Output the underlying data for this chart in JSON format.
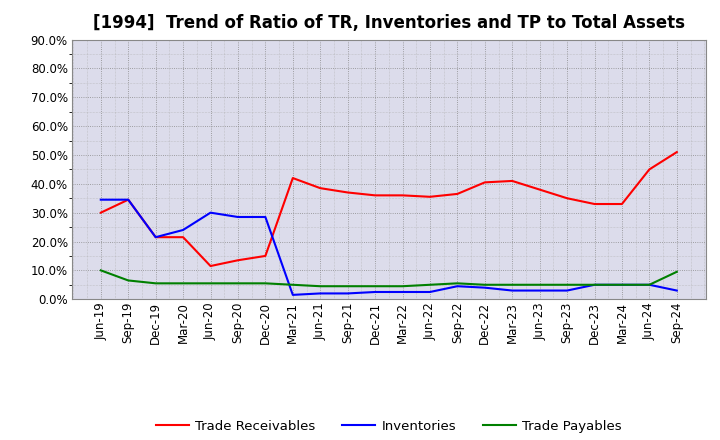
{
  "title": "[1994]  Trend of Ratio of TR, Inventories and TP to Total Assets",
  "x_labels": [
    "Jun-19",
    "Sep-19",
    "Dec-19",
    "Mar-20",
    "Jun-20",
    "Sep-20",
    "Dec-20",
    "Mar-21",
    "Jun-21",
    "Sep-21",
    "Dec-21",
    "Mar-22",
    "Jun-22",
    "Sep-22",
    "Dec-22",
    "Mar-23",
    "Jun-23",
    "Sep-23",
    "Dec-23",
    "Mar-24",
    "Jun-24",
    "Sep-24"
  ],
  "trade_receivables": [
    30.0,
    34.5,
    21.5,
    21.5,
    11.5,
    13.5,
    15.0,
    42.0,
    38.5,
    37.0,
    36.0,
    36.0,
    35.5,
    36.5,
    40.5,
    41.0,
    38.0,
    35.0,
    33.0,
    33.0,
    45.0,
    51.0
  ],
  "inventories": [
    34.5,
    34.5,
    21.5,
    24.0,
    30.0,
    28.5,
    28.5,
    1.5,
    2.0,
    2.0,
    2.5,
    2.5,
    2.5,
    4.5,
    4.0,
    3.0,
    3.0,
    3.0,
    5.0,
    5.0,
    5.0,
    3.0
  ],
  "trade_payables": [
    10.0,
    6.5,
    5.5,
    5.5,
    5.5,
    5.5,
    5.5,
    5.0,
    4.5,
    4.5,
    4.5,
    4.5,
    5.0,
    5.5,
    5.0,
    5.0,
    5.0,
    5.0,
    5.0,
    5.0,
    5.0,
    9.5
  ],
  "color_tr": "#FF0000",
  "color_inv": "#0000FF",
  "color_tp": "#008000",
  "ylim": [
    0.0,
    90.0
  ],
  "yticks": [
    0.0,
    10.0,
    20.0,
    30.0,
    40.0,
    50.0,
    60.0,
    70.0,
    80.0,
    90.0
  ],
  "legend_labels": [
    "Trade Receivables",
    "Inventories",
    "Trade Payables"
  ],
  "background_color": "#FFFFFF",
  "plot_bg_color": "#DCDCEB",
  "grid_color": "#AAAAAA",
  "title_fontsize": 12,
  "axis_fontsize": 8.5,
  "legend_fontsize": 9.5,
  "linewidth": 1.5
}
